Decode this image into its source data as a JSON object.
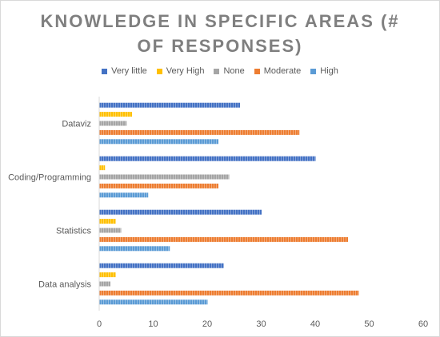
{
  "chart_data": {
    "type": "bar",
    "orientation": "horizontal",
    "title": "KNOWLEDGE IN SPECIFIC AREAS (# OF RESPONSES)",
    "title_lines": [
      "KNOWLEDGE IN SPECIFIC AREAS (#",
      "OF RESPONSES)"
    ],
    "categories": [
      "Data analysis",
      "Statistics",
      "Coding/Programming",
      "Dataviz"
    ],
    "series": [
      {
        "name": "Very little",
        "color": "#4472c4",
        "values": [
          23,
          30,
          40,
          26
        ]
      },
      {
        "name": "Very High",
        "color": "#ffc000",
        "values": [
          3,
          3,
          1,
          6
        ]
      },
      {
        "name": "None",
        "color": "#a5a5a5",
        "values": [
          2,
          4,
          24,
          5
        ]
      },
      {
        "name": "Moderate",
        "color": "#ed7d31",
        "values": [
          48,
          46,
          22,
          37
        ]
      },
      {
        "name": "High",
        "color": "#5b9bd5",
        "values": [
          20,
          13,
          9,
          22
        ]
      }
    ],
    "xlim": [
      0,
      60
    ],
    "xticks": [
      "0",
      "10",
      "20",
      "30",
      "40",
      "50",
      "60"
    ],
    "grid": false,
    "legend_position": "top",
    "bar_pattern": "striped"
  }
}
